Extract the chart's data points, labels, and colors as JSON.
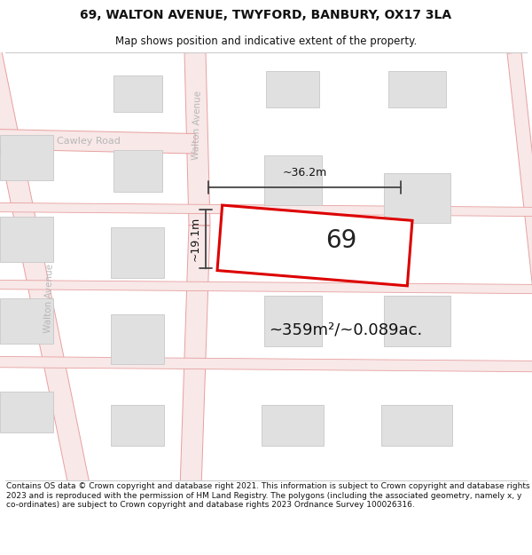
{
  "title_line1": "69, WALTON AVENUE, TWYFORD, BANBURY, OX17 3LA",
  "title_line2": "Map shows position and indicative extent of the property.",
  "area_label": "~359m²/~0.089ac.",
  "plot_label": "69",
  "width_label": "~36.2m",
  "height_label": "~19.1m",
  "footer_text": "Contains OS data © Crown copyright and database right 2021. This information is subject to Crown copyright and database rights 2023 and is reproduced with the permission of HM Land Registry. The polygons (including the associated geometry, namely x, y co-ordinates) are subject to Crown copyright and database rights 2023 Ordnance Survey 100026316.",
  "bg_color": "#ffffff",
  "map_bg": "#ffffff",
  "road_line_color": "#e8a0a0",
  "road_fill_color": "#f8e8e8",
  "building_color": "#e0e0e0",
  "building_border": "#c8c8c8",
  "plot_fill": "#ffffff",
  "plot_border": "#dd0000",
  "street_label_color": "#b8b8b8",
  "dim_color": "#444444",
  "title_fontsize": 10,
  "subtitle_fontsize": 8.5,
  "footer_fontsize": 6.5,
  "map_xlim": [
    0,
    100
  ],
  "map_ylim": [
    0,
    100
  ]
}
